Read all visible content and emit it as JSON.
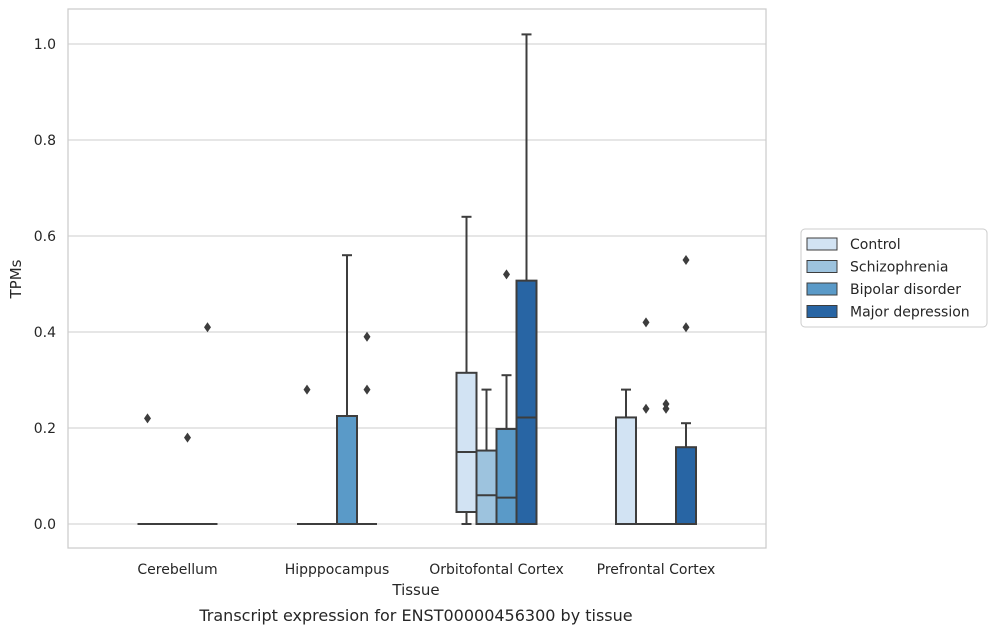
{
  "caption": "Transcript expression for ENST00000456300 by tissue",
  "chart_data": {
    "type": "boxplot",
    "xlabel": "Tissue",
    "ylabel": "TPMs",
    "ylim": [
      -0.05,
      1.07
    ],
    "yticks": [
      "0.0",
      "0.2",
      "0.4",
      "0.6",
      "0.8",
      "1.0"
    ],
    "grid": "horizontal",
    "legend_placement": "right",
    "categories": [
      "Cerebellum",
      "Hipppocampus",
      "Orbitofontal Cortex",
      "Prefrontal Cortex"
    ],
    "series": [
      {
        "name": "Control",
        "color": "#d2e3f3",
        "boxes": [
          {
            "q1": 0,
            "median": 0,
            "q3": 0,
            "whislo": 0,
            "whishi": 0,
            "fliers": [
              0.22
            ]
          },
          {
            "q1": 0,
            "median": 0,
            "q3": 0,
            "whislo": 0,
            "whishi": 0,
            "fliers": [
              0.28
            ]
          },
          {
            "q1": 0.025,
            "median": 0.15,
            "q3": 0.315,
            "whislo": 0,
            "whishi": 0.64,
            "fliers": []
          },
          {
            "q1": 0,
            "median": 0,
            "q3": 0.222,
            "whislo": 0,
            "whishi": 0.28,
            "fliers": []
          }
        ]
      },
      {
        "name": "Schizophrenia",
        "color": "#9dc3de",
        "boxes": [
          {
            "q1": 0,
            "median": 0,
            "q3": 0,
            "whislo": 0,
            "whishi": 0,
            "fliers": []
          },
          {
            "q1": 0,
            "median": 0,
            "q3": 0,
            "whislo": 0,
            "whishi": 0,
            "fliers": []
          },
          {
            "q1": 0,
            "median": 0.06,
            "q3": 0.153,
            "whislo": 0,
            "whishi": 0.28,
            "fliers": []
          },
          {
            "q1": 0,
            "median": 0,
            "q3": 0,
            "whislo": 0,
            "whishi": 0,
            "fliers": [
              0.42,
              0.24
            ]
          }
        ]
      },
      {
        "name": "Bipolar disorder",
        "color": "#5a9ac8",
        "boxes": [
          {
            "q1": 0,
            "median": 0,
            "q3": 0,
            "whislo": 0,
            "whishi": 0,
            "fliers": [
              0.18
            ]
          },
          {
            "q1": 0,
            "median": 0,
            "q3": 0.225,
            "whislo": 0,
            "whishi": 0.56,
            "fliers": []
          },
          {
            "q1": 0,
            "median": 0.055,
            "q3": 0.198,
            "whislo": 0,
            "whishi": 0.31,
            "fliers": [
              0.52
            ]
          },
          {
            "q1": 0,
            "median": 0,
            "q3": 0,
            "whislo": 0,
            "whishi": 0,
            "fliers": [
              0.25,
              0.24
            ]
          }
        ]
      },
      {
        "name": "Major depression",
        "color": "#2865a4",
        "boxes": [
          {
            "q1": 0,
            "median": 0,
            "q3": 0,
            "whislo": 0,
            "whishi": 0,
            "fliers": [
              0.41
            ]
          },
          {
            "q1": 0,
            "median": 0,
            "q3": 0,
            "whislo": 0,
            "whishi": 0,
            "fliers": [
              0.39,
              0.28
            ]
          },
          {
            "q1": 0,
            "median": 0.222,
            "q3": 0.507,
            "whislo": 0,
            "whishi": 1.02,
            "fliers": []
          },
          {
            "q1": 0,
            "median": 0,
            "q3": 0.16,
            "whislo": 0,
            "whishi": 0.21,
            "fliers": [
              0.55,
              0.41
            ]
          }
        ]
      }
    ]
  }
}
